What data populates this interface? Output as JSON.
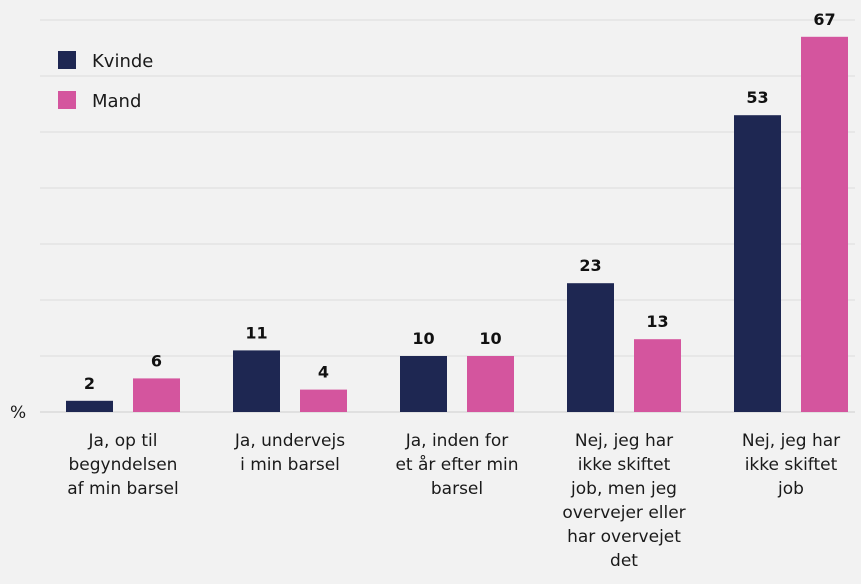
{
  "chart_data": {
    "type": "bar",
    "categories": [
      [
        "Ja, op til",
        "begyndelsen",
        "af min barsel"
      ],
      [
        "Ja, undervejs",
        "i min barsel"
      ],
      [
        "Ja, inden for",
        "et år efter min",
        "barsel"
      ],
      [
        "Nej, jeg har",
        "ikke skiftet",
        "job, men jeg",
        "overvejer eller",
        "har overvejet",
        "det"
      ],
      [
        "Nej, jeg har",
        "ikke skiftet",
        "job"
      ]
    ],
    "series": [
      {
        "name": "Kvinde",
        "color": "#1e2752",
        "values": [
          2,
          11,
          10,
          23,
          53
        ]
      },
      {
        "name": "Mand",
        "color": "#d4559e",
        "values": [
          6,
          4,
          10,
          13,
          67
        ]
      }
    ],
    "y_unit": "%",
    "ylim": [
      0,
      70
    ],
    "grid": true,
    "legend": "top-left"
  }
}
